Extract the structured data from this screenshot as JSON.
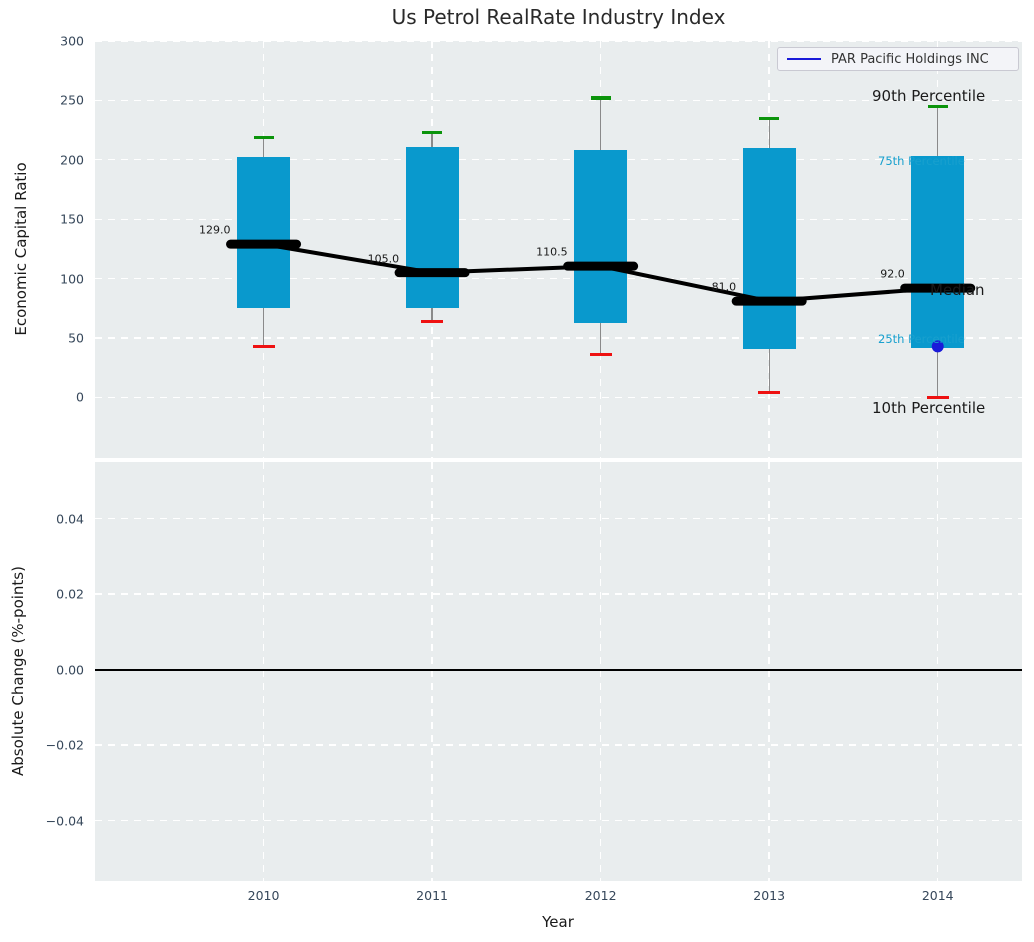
{
  "title": "Us Petrol RealRate Industry Index",
  "legend": {
    "label": "PAR Pacific Holdings INC"
  },
  "x_axis": {
    "label": "Year",
    "ticks": [
      "2010",
      "2011",
      "2012",
      "2013",
      "2014"
    ]
  },
  "top_plot": {
    "ylabel": "Economic Capital Ratio",
    "yticks": [
      "0",
      "50",
      "100",
      "150",
      "200",
      "250",
      "300"
    ]
  },
  "bottom_plot": {
    "ylabel": "Absolute Change (%-points)",
    "yticks": [
      "0.04",
      "0.02",
      "0.00",
      "−0.02",
      "−0.04"
    ]
  },
  "annotations": [
    {
      "text": "90th Percentile",
      "value": 253.5,
      "size": "large",
      "color": "black"
    },
    {
      "text": "75th Percentile",
      "value": 199,
      "size": "small",
      "color": "accent"
    },
    {
      "text": "Median",
      "value": 90,
      "size": "large",
      "color": "black"
    },
    {
      "text": "25th Percentile",
      "value": 49,
      "size": "small",
      "color": "accent"
    },
    {
      "text": "10th Percentile",
      "value": -9,
      "size": "large",
      "color": "black"
    }
  ],
  "chart_data": [
    {
      "type": "bar",
      "subtype": "percentile-box-series",
      "title": "Us Petrol RealRate Industry Index",
      "xlabel": "Year",
      "ylabel": "Economic Capital Ratio",
      "categories": [
        2010,
        2011,
        2012,
        2013,
        2014
      ],
      "series": [
        {
          "name": "90th Percentile",
          "values": [
            219,
            223,
            252,
            235,
            245
          ]
        },
        {
          "name": "75th Percentile",
          "values": [
            202,
            211,
            208,
            210,
            203
          ]
        },
        {
          "name": "Median",
          "values": [
            129.0,
            105.0,
            110.5,
            81.0,
            92.0
          ]
        },
        {
          "name": "25th Percentile",
          "values": [
            75,
            75,
            63,
            41,
            42
          ]
        },
        {
          "name": "10th Percentile",
          "values": [
            43,
            64,
            36,
            4,
            0
          ]
        }
      ],
      "median_labels": [
        "129.0",
        "105.0",
        "110.5",
        "81.0",
        "92.0"
      ],
      "company_series": {
        "name": "PAR Pacific Holdings INC",
        "points": [
          {
            "x": 2014,
            "y": 43
          }
        ]
      },
      "ylim": [
        -51,
        300
      ],
      "yticks": [
        0,
        50,
        100,
        150,
        200,
        250,
        300
      ],
      "grid": true,
      "legend_position": "upper right"
    },
    {
      "type": "line",
      "ylabel": "Absolute Change (%-points)",
      "x": [],
      "y": [],
      "ylim": [
        -0.056,
        0.055
      ],
      "yticks": [
        0.04,
        0.02,
        0.0,
        -0.02,
        -0.04
      ],
      "zero_line": 0.0,
      "grid": true
    }
  ],
  "colors": {
    "bar": "#0999cd",
    "cap_90": "#0b940b",
    "cap_10": "#ee1111",
    "median": "#000000",
    "whisker": "#8a8a8a",
    "company": "#1a1ad9",
    "accent_text": "#18a0ce",
    "plot_bg": "#e9edee",
    "tick_text": "#36475a"
  }
}
